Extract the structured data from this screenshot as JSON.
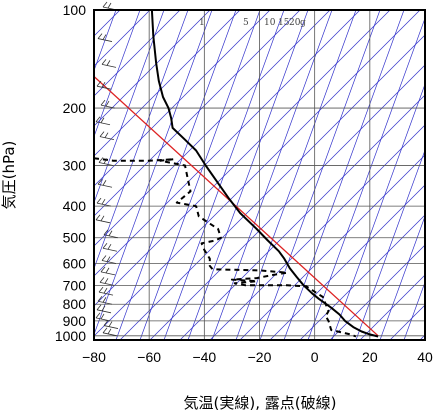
{
  "chart_data": {
    "type": "line",
    "xlabel": "気温(実線), 露点(破線)",
    "ylabel": "気圧(hPa)",
    "x_axis": {
      "range": [
        -80,
        40
      ],
      "ticks": [
        -80,
        -60,
        -40,
        -20,
        0,
        20,
        40
      ]
    },
    "y_axis": {
      "scale": "log",
      "range": [
        1030,
        100
      ],
      "ticks": [
        100,
        200,
        300,
        400,
        500,
        600,
        700,
        800,
        900,
        1000
      ]
    },
    "mixing_ratio_labels": [
      "1",
      "5",
      "10",
      "15",
      "20",
      "g"
    ],
    "series": [
      {
        "style": "solid",
        "points": [
          [
            -59,
            100
          ],
          [
            -58.5,
            120
          ],
          [
            -57.5,
            145
          ],
          [
            -56.5,
            165
          ],
          [
            -55,
            185
          ],
          [
            -53,
            200
          ],
          [
            -52,
            215
          ],
          [
            -51.5,
            230
          ],
          [
            -47,
            250
          ],
          [
            -43,
            270
          ],
          [
            -39.5,
            300
          ],
          [
            -35,
            340
          ],
          [
            -31,
            380
          ],
          [
            -27,
            420
          ],
          [
            -21,
            470
          ],
          [
            -17,
            510
          ],
          [
            -13,
            550
          ],
          [
            -11,
            580
          ],
          [
            -9,
            620
          ],
          [
            -6.5,
            660
          ],
          [
            -4,
            700
          ],
          [
            -1,
            740
          ],
          [
            1.5,
            770
          ],
          [
            6,
            820
          ],
          [
            9,
            860
          ],
          [
            11,
            900
          ],
          [
            14,
            940
          ],
          [
            17,
            970
          ],
          [
            20,
            990
          ],
          [
            23,
            1005
          ]
        ]
      },
      {
        "style": "dashed",
        "points": [
          [
            -80,
            285
          ],
          [
            -73,
            290
          ],
          [
            -60,
            290
          ],
          [
            -51,
            287
          ],
          [
            -56,
            290
          ],
          [
            -47,
            300
          ],
          [
            -46,
            330
          ],
          [
            -45,
            360
          ],
          [
            -50,
            390
          ],
          [
            -43,
            400
          ],
          [
            -42,
            430
          ],
          [
            -35,
            470
          ],
          [
            -34,
            500
          ],
          [
            -36,
            510
          ],
          [
            -41,
            520
          ],
          [
            -40,
            545
          ],
          [
            -38,
            580
          ],
          [
            -38,
            610
          ],
          [
            -37,
            625
          ],
          [
            -20,
            630
          ],
          [
            -10,
            640
          ],
          [
            -15,
            650
          ],
          [
            -21,
            665
          ],
          [
            -30,
            672
          ],
          [
            -21,
            680
          ],
          [
            -29,
            690
          ],
          [
            -25,
            700
          ],
          [
            -10,
            700
          ],
          [
            -3,
            705
          ],
          [
            3,
            760
          ],
          [
            4,
            800
          ],
          [
            5,
            840
          ],
          [
            4,
            870
          ],
          [
            5,
            900
          ],
          [
            6,
            960
          ],
          [
            13,
            990
          ],
          [
            15,
            1005
          ]
        ]
      }
    ],
    "reference_line": {
      "points": [
        [
          -80,
          160
        ],
        [
          23,
          1000
        ]
      ],
      "color": "#dd2222"
    },
    "wind_barb_levels": [
      100,
      125,
      150,
      175,
      200,
      225,
      250,
      300,
      350,
      400,
      450,
      500,
      550,
      600,
      650,
      700,
      750,
      800,
      850,
      900,
      950,
      1000
    ]
  },
  "colors": {
    "frame": "#000000",
    "grid": "#555555",
    "isopleth": "#3333cc",
    "temp": "#000000",
    "dew": "#000000",
    "ref": "#dd2222"
  }
}
